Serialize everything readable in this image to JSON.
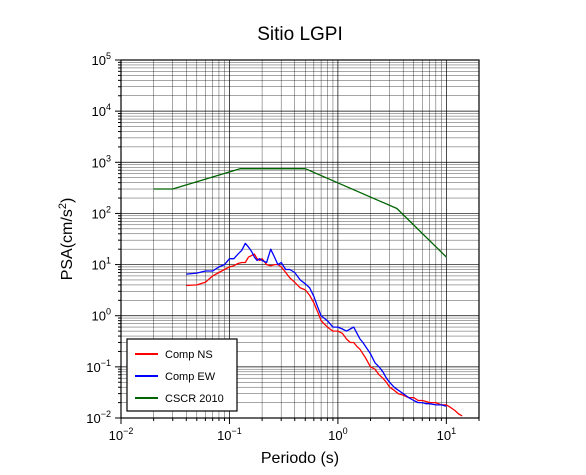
{
  "chart_data": {
    "type": "line",
    "title": "Sitio LGPI",
    "xlabel": "Periodo (s)",
    "ylabel_main": "PSA(cm/s",
    "ylabel_sup": "2",
    "ylabel_end": ")",
    "xscale": "log",
    "yscale": "log",
    "xlim": [
      0.01,
      20
    ],
    "ylim": [
      0.01,
      100000
    ],
    "grid": true,
    "legend_position": "bottom-left",
    "x_ticks": [
      {
        "base": "10",
        "exp": "−2",
        "value": 0.01
      },
      {
        "base": "10",
        "exp": "−1",
        "value": 0.1
      },
      {
        "base": "10",
        "exp": "0",
        "value": 1
      },
      {
        "base": "10",
        "exp": "1",
        "value": 10
      }
    ],
    "y_ticks": [
      {
        "base": "10",
        "exp": "−2",
        "value": 0.01
      },
      {
        "base": "10",
        "exp": "−1",
        "value": 0.1
      },
      {
        "base": "10",
        "exp": "0",
        "value": 1
      },
      {
        "base": "10",
        "exp": "1",
        "value": 10
      },
      {
        "base": "10",
        "exp": "2",
        "value": 100
      },
      {
        "base": "10",
        "exp": "3",
        "value": 1000
      },
      {
        "base": "10",
        "exp": "4",
        "value": 10000
      },
      {
        "base": "10",
        "exp": "5",
        "value": 100000
      }
    ],
    "series": [
      {
        "name": "Comp NS",
        "color": "#ff0000",
        "x": [
          0.04,
          0.05,
          0.06,
          0.07,
          0.08,
          0.09,
          0.1,
          0.11,
          0.12,
          0.13,
          0.14,
          0.15,
          0.16,
          0.17,
          0.18,
          0.19,
          0.2,
          0.22,
          0.24,
          0.26,
          0.28,
          0.3,
          0.33,
          0.36,
          0.4,
          0.45,
          0.5,
          0.55,
          0.6,
          0.65,
          0.7,
          0.8,
          0.9,
          1.0,
          1.1,
          1.2,
          1.3,
          1.4,
          1.5,
          1.6,
          1.7,
          1.8,
          2.0,
          2.2,
          2.4,
          2.6,
          2.8,
          3.0,
          3.3,
          3.6,
          4.0,
          4.5,
          5.0,
          5.5,
          6.0,
          6.5,
          7.0,
          8.0,
          9.0,
          10.0,
          11.0,
          12.0,
          13.0,
          14.0
        ],
        "y": [
          3.9,
          4.0,
          4.5,
          6.0,
          7.0,
          8.0,
          9.0,
          9.5,
          10.5,
          11.0,
          11.0,
          14.0,
          15.0,
          16.0,
          13.0,
          12.0,
          13.0,
          10.0,
          9.5,
          10.0,
          10.0,
          9.0,
          7.0,
          5.5,
          4.5,
          3.5,
          3.2,
          2.5,
          1.8,
          1.2,
          0.8,
          0.6,
          0.5,
          0.5,
          0.45,
          0.35,
          0.3,
          0.3,
          0.25,
          0.22,
          0.18,
          0.15,
          0.1,
          0.09,
          0.07,
          0.06,
          0.05,
          0.04,
          0.035,
          0.03,
          0.028,
          0.025,
          0.025,
          0.022,
          0.022,
          0.021,
          0.02,
          0.02,
          0.018,
          0.018,
          0.016,
          0.014,
          0.012,
          0.011
        ]
      },
      {
        "name": "Comp EW",
        "color": "#0000ff",
        "x": [
          0.04,
          0.05,
          0.06,
          0.07,
          0.08,
          0.09,
          0.1,
          0.11,
          0.12,
          0.13,
          0.14,
          0.15,
          0.16,
          0.17,
          0.18,
          0.19,
          0.2,
          0.22,
          0.24,
          0.26,
          0.28,
          0.3,
          0.33,
          0.36,
          0.4,
          0.45,
          0.5,
          0.55,
          0.6,
          0.65,
          0.7,
          0.8,
          0.9,
          1.0,
          1.1,
          1.2,
          1.3,
          1.4,
          1.5,
          1.6,
          1.7,
          1.8,
          2.0,
          2.2,
          2.4,
          2.6,
          2.8,
          3.0,
          3.3,
          3.6,
          4.0,
          4.5,
          5.0,
          5.5,
          6.0,
          6.5,
          7.0,
          8.0,
          9.0,
          10.0
        ],
        "y": [
          6.5,
          6.8,
          7.5,
          7.5,
          9.0,
          10.0,
          13.0,
          13.0,
          16.0,
          19.0,
          26.0,
          22.0,
          18.0,
          14.0,
          12.0,
          13.0,
          12.0,
          11.0,
          20.0,
          14.0,
          10.0,
          11.0,
          8.0,
          8.0,
          7.0,
          5.0,
          4.2,
          3.5,
          2.4,
          1.5,
          1.0,
          0.8,
          0.6,
          0.6,
          0.55,
          0.5,
          0.55,
          0.6,
          0.45,
          0.35,
          0.3,
          0.25,
          0.18,
          0.12,
          0.1,
          0.08,
          0.06,
          0.05,
          0.04,
          0.035,
          0.03,
          0.025,
          0.022,
          0.02,
          0.02,
          0.019,
          0.019,
          0.018,
          0.018,
          0.017
        ]
      },
      {
        "name": "CSCR 2010",
        "color": "#006400",
        "x": [
          0.02,
          0.03,
          0.125,
          0.5,
          3.5,
          10.0
        ],
        "y": [
          300,
          300,
          750,
          750,
          125,
          14
        ]
      }
    ]
  }
}
